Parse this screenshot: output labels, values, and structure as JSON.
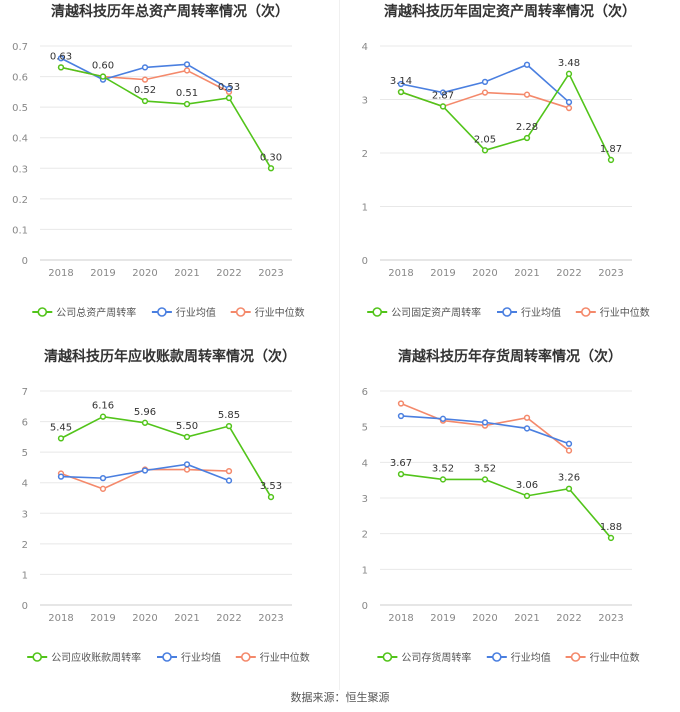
{
  "colors": {
    "company": "#52c41a",
    "avg": "#4a7fe0",
    "median": "#f4896b",
    "grid": "#e8e8e8",
    "axis_text": "#888888",
    "title": "#333333"
  },
  "legend_labels_common": {
    "avg": "行业均值",
    "median": "行业中位数"
  },
  "footer": {
    "source": "数据来源：恒生聚源"
  },
  "chart_data": [
    {
      "type": "line",
      "title": "清越科技历年总资产周转率情况（次）",
      "categories": [
        "2018",
        "2019",
        "2020",
        "2021",
        "2022",
        "2023"
      ],
      "ylim": [
        0,
        0.7
      ],
      "yticks": [
        "0",
        "0.1",
        "0.2",
        "0.3",
        "0.4",
        "0.5",
        "0.6",
        "0.7"
      ],
      "series": [
        {
          "name": "公司总资产周转率",
          "key": "company",
          "values": [
            0.63,
            0.6,
            0.52,
            0.51,
            0.53,
            0.3
          ],
          "labels": [
            "0.63",
            "0.60",
            "0.52",
            "0.51",
            "0.53",
            "0.30"
          ]
        },
        {
          "name": "行业均值",
          "key": "avg",
          "values": [
            0.66,
            0.59,
            0.63,
            0.64,
            0.56,
            null
          ]
        },
        {
          "name": "行业中位数",
          "key": "median",
          "values": [
            0.63,
            0.6,
            0.59,
            0.62,
            0.55,
            null
          ]
        }
      ]
    },
    {
      "type": "line",
      "title": "清越科技历年固定资产周转率情况（次）",
      "categories": [
        "2018",
        "2019",
        "2020",
        "2021",
        "2022",
        "2023"
      ],
      "ylim": [
        0,
        4
      ],
      "yticks": [
        "0",
        "1",
        "2",
        "3",
        "4"
      ],
      "series": [
        {
          "name": "公司固定资产周转率",
          "key": "company",
          "values": [
            3.14,
            2.87,
            2.05,
            2.28,
            3.48,
            1.87
          ],
          "labels": [
            "3.14",
            "2.87",
            "2.05",
            "2.28",
            "3.48",
            "1.87"
          ]
        },
        {
          "name": "行业均值",
          "key": "avg",
          "values": [
            3.29,
            3.13,
            3.33,
            3.65,
            2.95,
            null
          ]
        },
        {
          "name": "行业中位数",
          "key": "median",
          "values": [
            3.14,
            2.87,
            3.13,
            3.09,
            2.84,
            null
          ]
        }
      ]
    },
    {
      "type": "line",
      "title": "清越科技历年应收账款周转率情况（次）",
      "categories": [
        "2018",
        "2019",
        "2020",
        "2021",
        "2022",
        "2023"
      ],
      "ylim": [
        0,
        7
      ],
      "yticks": [
        "0",
        "1",
        "2",
        "3",
        "4",
        "5",
        "6",
        "7"
      ],
      "series": [
        {
          "name": "公司应收账款周转率",
          "key": "company",
          "values": [
            5.45,
            6.16,
            5.96,
            5.5,
            5.85,
            3.53
          ],
          "labels": [
            "5.45",
            "6.16",
            "5.96",
            "5.50",
            "5.85",
            "3.53"
          ]
        },
        {
          "name": "行业均值",
          "key": "avg",
          "values": [
            4.2,
            4.15,
            4.4,
            4.6,
            4.07,
            null
          ]
        },
        {
          "name": "行业中位数",
          "key": "median",
          "values": [
            4.3,
            3.8,
            4.43,
            4.43,
            4.38,
            null
          ]
        }
      ]
    },
    {
      "type": "line",
      "title": "清越科技历年存货周转率情况（次）",
      "categories": [
        "2018",
        "2019",
        "2020",
        "2021",
        "2022",
        "2023"
      ],
      "ylim": [
        0,
        6
      ],
      "yticks": [
        "0",
        "1",
        "2",
        "3",
        "4",
        "5",
        "6"
      ],
      "series": [
        {
          "name": "公司存货周转率",
          "key": "company",
          "values": [
            3.67,
            3.52,
            3.52,
            3.06,
            3.26,
            1.88
          ],
          "labels": [
            "3.67",
            "3.52",
            "3.52",
            "3.06",
            "3.26",
            "1.88"
          ]
        },
        {
          "name": "行业均值",
          "key": "avg",
          "values": [
            5.3,
            5.22,
            5.12,
            4.95,
            4.52,
            null
          ]
        },
        {
          "name": "行业中位数",
          "key": "median",
          "values": [
            5.65,
            5.17,
            5.03,
            5.25,
            4.33,
            null
          ]
        }
      ]
    }
  ]
}
